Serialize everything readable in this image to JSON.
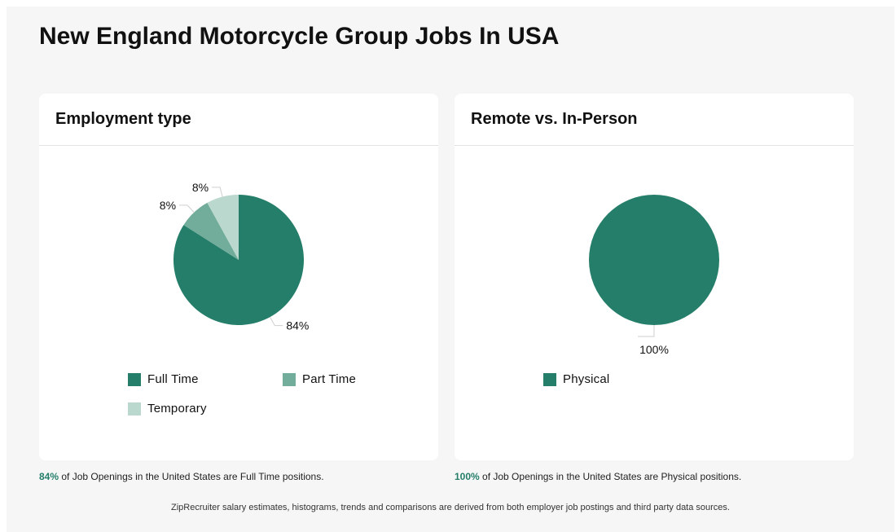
{
  "page": {
    "title": "New England Motorcycle Group Jobs In USA",
    "footer": "ZipRecruiter salary estimates, histograms, trends and comparisons are derived from both employer job postings and third party data sources."
  },
  "chart_data": [
    {
      "type": "pie",
      "title": "Employment type",
      "slices": [
        {
          "name": "Full Time",
          "value": 84,
          "label": "84%",
          "color": "#257e6a"
        },
        {
          "name": "Part Time",
          "value": 8,
          "label": "8%",
          "color": "#72ac9b"
        },
        {
          "name": "Temporary",
          "value": 8,
          "label": "8%",
          "color": "#bad8ce"
        }
      ],
      "caption": {
        "pct": "84%",
        "text": " of Job Openings in the United States are Full Time positions."
      }
    },
    {
      "type": "pie",
      "title": "Remote vs. In-Person",
      "slices": [
        {
          "name": "Physical",
          "value": 100,
          "label": "100%",
          "color": "#257e6a"
        }
      ],
      "caption": {
        "pct": "100%",
        "text": " of Job Openings in the United States are Physical positions."
      }
    }
  ]
}
